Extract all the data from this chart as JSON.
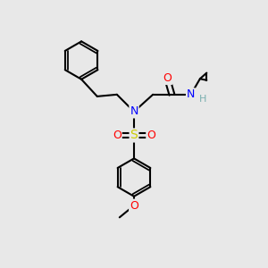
{
  "background_color": "#e8e8e8",
  "bond_color": "#000000",
  "bond_width": 1.5,
  "atom_colors": {
    "O": "#ff0000",
    "N": "#0000ff",
    "S": "#cccc00",
    "H": "#7aafaf",
    "C": "#000000"
  },
  "figsize": [
    3.0,
    3.0
  ],
  "dpi": 100
}
